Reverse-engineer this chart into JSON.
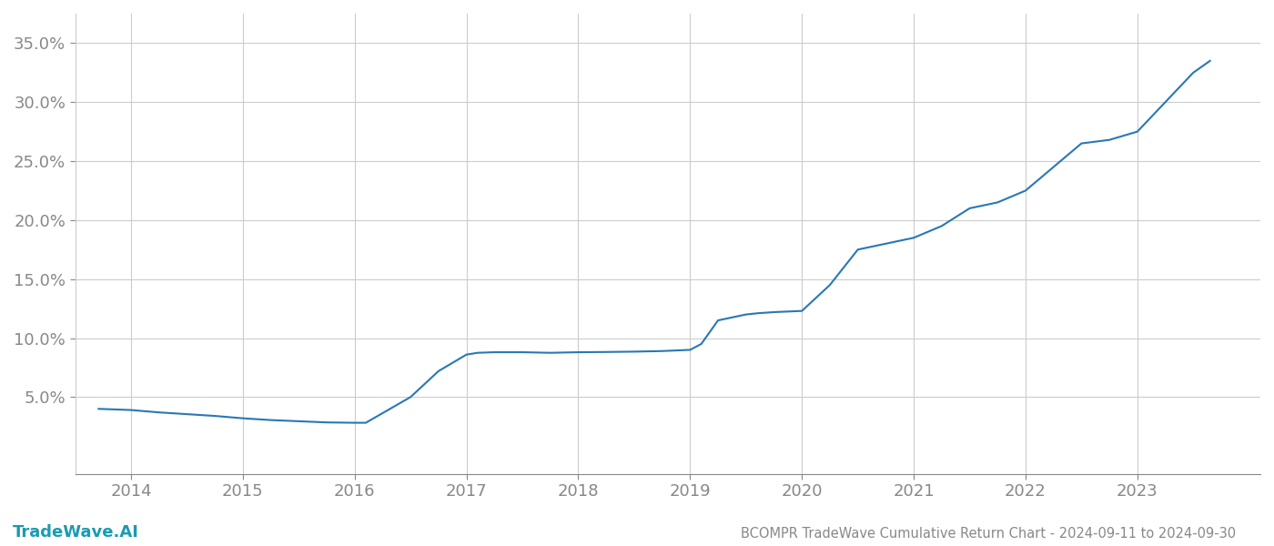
{
  "x_values": [
    2013.71,
    2014.0,
    2014.25,
    2014.5,
    2014.75,
    2015.0,
    2015.25,
    2015.5,
    2015.75,
    2016.0,
    2016.1,
    2016.5,
    2016.75,
    2017.0,
    2017.1,
    2017.25,
    2017.5,
    2017.75,
    2018.0,
    2018.25,
    2018.5,
    2018.75,
    2019.0,
    2019.1,
    2019.25,
    2019.5,
    2019.6,
    2019.75,
    2020.0,
    2020.25,
    2020.5,
    2020.75,
    2021.0,
    2021.25,
    2021.5,
    2021.75,
    2022.0,
    2022.25,
    2022.5,
    2022.75,
    2023.0,
    2023.25,
    2023.5,
    2023.65
  ],
  "y_values": [
    4.0,
    3.9,
    3.7,
    3.55,
    3.4,
    3.2,
    3.05,
    2.95,
    2.85,
    2.82,
    2.82,
    5.0,
    7.2,
    8.6,
    8.75,
    8.8,
    8.8,
    8.75,
    8.8,
    8.82,
    8.85,
    8.9,
    9.0,
    9.5,
    11.5,
    12.0,
    12.1,
    12.2,
    12.3,
    14.5,
    17.5,
    18.0,
    18.5,
    19.5,
    21.0,
    21.5,
    22.5,
    24.5,
    26.5,
    26.8,
    27.5,
    30.0,
    32.5,
    33.5
  ],
  "line_color": "#2878b5",
  "line_width": 1.5,
  "background_color": "#ffffff",
  "grid_color": "#cccccc",
  "title": "BCOMPR TradeWave Cumulative Return Chart - 2024-09-11 to 2024-09-30",
  "title_fontsize": 10.5,
  "title_color": "#888888",
  "watermark": "TradeWave.AI",
  "watermark_color": "#1a9bb0",
  "watermark_fontsize": 13,
  "xlim": [
    2013.5,
    2024.1
  ],
  "ylim": [
    -1.5,
    37.5
  ],
  "yticks": [
    5.0,
    10.0,
    15.0,
    20.0,
    25.0,
    30.0,
    35.0
  ],
  "xticks": [
    2014,
    2015,
    2016,
    2017,
    2018,
    2019,
    2020,
    2021,
    2022,
    2023
  ],
  "tick_color": "#888888",
  "tick_fontsize": 13
}
